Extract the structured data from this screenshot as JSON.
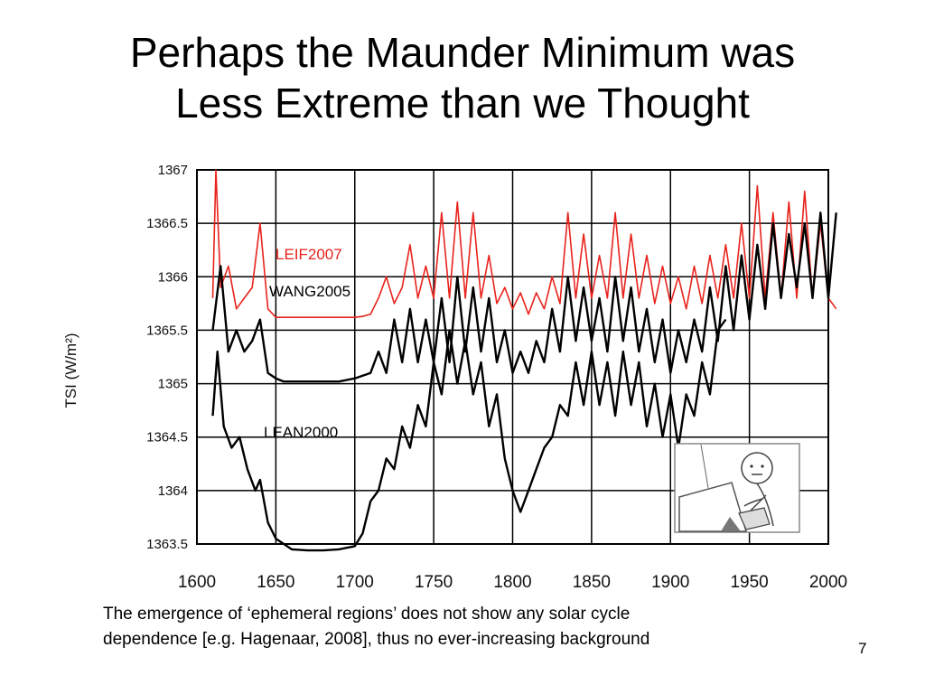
{
  "slide": {
    "title_line1": "Perhaps the Maunder Minimum was",
    "title_line2": "Less Extreme than we Thought",
    "caption_line1": "The emergence of ‘ephemeral regions’ does not show any solar cycle",
    "caption_line2": "dependence [e.g. Hagenaar, 2008], thus no ever-increasing background",
    "page_number": "7"
  },
  "colors": {
    "leif": "#e8231c",
    "black_series": "#000000",
    "grid": "#000000"
  },
  "chart_data": {
    "type": "line",
    "title": "",
    "xlabel": "",
    "ylabel": "TSI  (W/m²)",
    "xlim": [
      1600,
      2000
    ],
    "ylim": [
      1363.5,
      1367
    ],
    "grid": true,
    "x_ticks": [
      "1600",
      "1650",
      "1700",
      "1750",
      "1800",
      "1850",
      "1900",
      "1950",
      "2000"
    ],
    "y_ticks": [
      "1363.5",
      "1364",
      "1364.5",
      "1365",
      "1365.5",
      "1366",
      "1366.5",
      "1367"
    ],
    "series": [
      {
        "name": "LEIF2007",
        "color": "#e8231c",
        "x": [
          1610,
          1612,
          1615,
          1620,
          1625,
          1630,
          1635,
          1640,
          1645,
          1650,
          1660,
          1670,
          1680,
          1690,
          1700,
          1705,
          1710,
          1715,
          1720,
          1725,
          1730,
          1735,
          1740,
          1745,
          1750,
          1755,
          1760,
          1765,
          1770,
          1775,
          1780,
          1785,
          1790,
          1795,
          1800,
          1805,
          1810,
          1815,
          1820,
          1825,
          1830,
          1835,
          1840,
          1845,
          1850,
          1855,
          1860,
          1865,
          1870,
          1875,
          1880,
          1885,
          1890,
          1895,
          1900,
          1905,
          1910,
          1915,
          1920,
          1925,
          1930,
          1935,
          1940,
          1945,
          1950,
          1955,
          1960,
          1965,
          1970,
          1975,
          1980,
          1985,
          1990,
          1995,
          2000,
          2005
        ],
        "y": [
          1365.8,
          1367,
          1365.9,
          1366.1,
          1365.7,
          1365.8,
          1365.9,
          1366.5,
          1365.7,
          1365.62,
          1365.62,
          1365.62,
          1365.62,
          1365.62,
          1365.62,
          1365.63,
          1365.65,
          1365.8,
          1366.0,
          1365.75,
          1365.9,
          1366.3,
          1365.8,
          1366.1,
          1365.8,
          1366.6,
          1365.8,
          1366.7,
          1365.8,
          1366.6,
          1365.8,
          1366.2,
          1365.75,
          1365.9,
          1365.7,
          1365.85,
          1365.65,
          1365.85,
          1365.7,
          1366.0,
          1365.75,
          1366.6,
          1365.8,
          1366.4,
          1365.8,
          1366.2,
          1365.8,
          1366.6,
          1365.8,
          1366.4,
          1365.8,
          1366.2,
          1365.75,
          1366.1,
          1365.75,
          1366.0,
          1365.7,
          1366.1,
          1365.75,
          1366.2,
          1365.8,
          1366.3,
          1365.8,
          1366.5,
          1365.8,
          1366.85,
          1365.8,
          1366.6,
          1365.8,
          1366.7,
          1365.8,
          1366.8,
          1365.8,
          1366.5,
          1365.8,
          1365.7
        ]
      },
      {
        "name": "WANG2005",
        "color": "#000000",
        "x": [
          1610,
          1615,
          1620,
          1625,
          1630,
          1635,
          1640,
          1645,
          1650,
          1655,
          1660,
          1670,
          1680,
          1690,
          1700,
          1710,
          1715,
          1720,
          1725,
          1730,
          1735,
          1740,
          1745,
          1750,
          1755,
          1760,
          1765,
          1770,
          1775,
          1780,
          1785,
          1790,
          1795,
          1800,
          1805,
          1810,
          1815,
          1820,
          1825,
          1830,
          1835,
          1840,
          1845,
          1850,
          1855,
          1860,
          1865,
          1870,
          1875,
          1880,
          1885,
          1890,
          1895,
          1900,
          1905,
          1910,
          1915,
          1920,
          1925,
          1930,
          1935,
          1940,
          1945,
          1950,
          1955,
          1960,
          1965,
          1970,
          1975,
          1980,
          1985,
          1990,
          1995,
          2000,
          2005
        ],
        "y": [
          1365.5,
          1366.1,
          1365.3,
          1365.5,
          1365.3,
          1365.4,
          1365.6,
          1365.1,
          1365.05,
          1365.02,
          1365.02,
          1365.02,
          1365.02,
          1365.02,
          1365.05,
          1365.1,
          1365.3,
          1365.1,
          1365.6,
          1365.2,
          1365.7,
          1365.2,
          1365.6,
          1365.2,
          1365.8,
          1365.2,
          1366.0,
          1365.3,
          1365.9,
          1365.3,
          1365.8,
          1365.2,
          1365.5,
          1365.1,
          1365.3,
          1365.1,
          1365.4,
          1365.2,
          1365.7,
          1365.3,
          1366.0,
          1365.4,
          1365.9,
          1365.4,
          1365.8,
          1365.3,
          1366.0,
          1365.4,
          1365.9,
          1365.3,
          1365.7,
          1365.2,
          1365.6,
          1365.1,
          1365.5,
          1365.2,
          1365.6,
          1365.3,
          1365.9,
          1365.4,
          1366.1,
          1365.5,
          1366.2,
          1365.6,
          1366.3,
          1365.7,
          1366.5,
          1365.8,
          1366.4,
          1365.9,
          1366.5,
          1365.8,
          1366.6,
          1365.8,
          1366.6
        ]
      },
      {
        "name": "LEAN2000",
        "color": "#000000",
        "x": [
          1610,
          1613,
          1617,
          1622,
          1627,
          1632,
          1637,
          1640,
          1645,
          1650,
          1660,
          1670,
          1680,
          1690,
          1700,
          1705,
          1710,
          1715,
          1720,
          1725,
          1730,
          1735,
          1740,
          1745,
          1750,
          1755,
          1760,
          1765,
          1770,
          1775,
          1780,
          1785,
          1790,
          1795,
          1800,
          1805,
          1810,
          1815,
          1820,
          1825,
          1830,
          1835,
          1840,
          1845,
          1850,
          1855,
          1860,
          1865,
          1870,
          1875,
          1880,
          1885,
          1890,
          1895,
          1900,
          1905,
          1910,
          1915,
          1920,
          1925,
          1930,
          1935
        ],
        "y": [
          1364.7,
          1365.3,
          1364.6,
          1364.4,
          1364.5,
          1364.2,
          1364.0,
          1364.1,
          1363.7,
          1363.55,
          1363.45,
          1363.44,
          1363.44,
          1363.45,
          1363.48,
          1363.6,
          1363.9,
          1364.0,
          1364.3,
          1364.2,
          1364.6,
          1364.4,
          1364.8,
          1364.6,
          1365.2,
          1364.9,
          1365.5,
          1365.0,
          1365.4,
          1364.9,
          1365.2,
          1364.6,
          1364.9,
          1364.3,
          1364.0,
          1363.8,
          1364.0,
          1364.2,
          1364.4,
          1364.5,
          1364.8,
          1364.7,
          1365.2,
          1364.8,
          1365.3,
          1364.8,
          1365.2,
          1364.7,
          1365.3,
          1364.8,
          1365.2,
          1364.6,
          1365.0,
          1364.5,
          1364.9,
          1364.4,
          1364.9,
          1364.7,
          1365.2,
          1364.9,
          1365.5,
          1365.6
        ]
      }
    ]
  }
}
